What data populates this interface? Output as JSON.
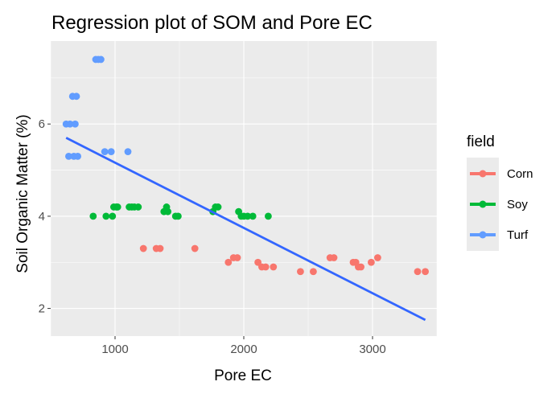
{
  "chart_data": {
    "type": "scatter",
    "title": "Regression plot of SOM and Pore EC",
    "xlabel": "Pore EC",
    "ylabel": "Soil Organic Matter (%)",
    "xlim": [
      500,
      3500
    ],
    "ylim": [
      1.4,
      7.8
    ],
    "x_ticks": [
      1000,
      2000,
      3000
    ],
    "y_ticks": [
      2,
      4,
      6
    ],
    "grid": true,
    "legend": {
      "title": "field",
      "placement": "right"
    },
    "series": [
      {
        "name": "Corn",
        "color": "#F8766D",
        "points": [
          [
            1220,
            3.3
          ],
          [
            1320,
            3.3
          ],
          [
            1350,
            3.3
          ],
          [
            1620,
            3.3
          ],
          [
            1880,
            3.0
          ],
          [
            1920,
            3.1
          ],
          [
            1950,
            3.1
          ],
          [
            2110,
            3.0
          ],
          [
            2140,
            2.9
          ],
          [
            2170,
            2.9
          ],
          [
            2230,
            2.9
          ],
          [
            2440,
            2.8
          ],
          [
            2540,
            2.8
          ],
          [
            2670,
            3.1
          ],
          [
            2700,
            3.1
          ],
          [
            2850,
            3.0
          ],
          [
            2870,
            3.0
          ],
          [
            2890,
            2.9
          ],
          [
            2910,
            2.9
          ],
          [
            2990,
            3.0
          ],
          [
            3040,
            3.1
          ],
          [
            3350,
            2.8
          ],
          [
            3410,
            2.8
          ]
        ]
      },
      {
        "name": "Soy",
        "color": "#00BA38",
        "points": [
          [
            830,
            4.0
          ],
          [
            930,
            4.0
          ],
          [
            980,
            4.0
          ],
          [
            990,
            4.2
          ],
          [
            1010,
            4.2
          ],
          [
            1020,
            4.2
          ],
          [
            1110,
            4.2
          ],
          [
            1130,
            4.2
          ],
          [
            1150,
            4.2
          ],
          [
            1180,
            4.2
          ],
          [
            1380,
            4.1
          ],
          [
            1400,
            4.2
          ],
          [
            1410,
            4.1
          ],
          [
            1470,
            4.0
          ],
          [
            1490,
            4.0
          ],
          [
            1760,
            4.1
          ],
          [
            1780,
            4.2
          ],
          [
            1800,
            4.2
          ],
          [
            1960,
            4.1
          ],
          [
            1980,
            4.0
          ],
          [
            2000,
            4.0
          ],
          [
            2030,
            4.0
          ],
          [
            2070,
            4.0
          ],
          [
            2190,
            4.0
          ]
        ]
      },
      {
        "name": "Turf",
        "color": "#619CFF",
        "points": [
          [
            850,
            7.4
          ],
          [
            870,
            7.4
          ],
          [
            890,
            7.4
          ],
          [
            670,
            6.6
          ],
          [
            700,
            6.6
          ],
          [
            620,
            6.0
          ],
          [
            650,
            6.0
          ],
          [
            690,
            6.0
          ],
          [
            920,
            5.4
          ],
          [
            970,
            5.4
          ],
          [
            1100,
            5.4
          ],
          [
            640,
            5.3
          ],
          [
            680,
            5.3
          ],
          [
            710,
            5.3
          ]
        ]
      }
    ],
    "regression_line": {
      "color": "#3366FF",
      "points": [
        [
          620,
          5.7
        ],
        [
          3410,
          1.75
        ]
      ]
    }
  }
}
